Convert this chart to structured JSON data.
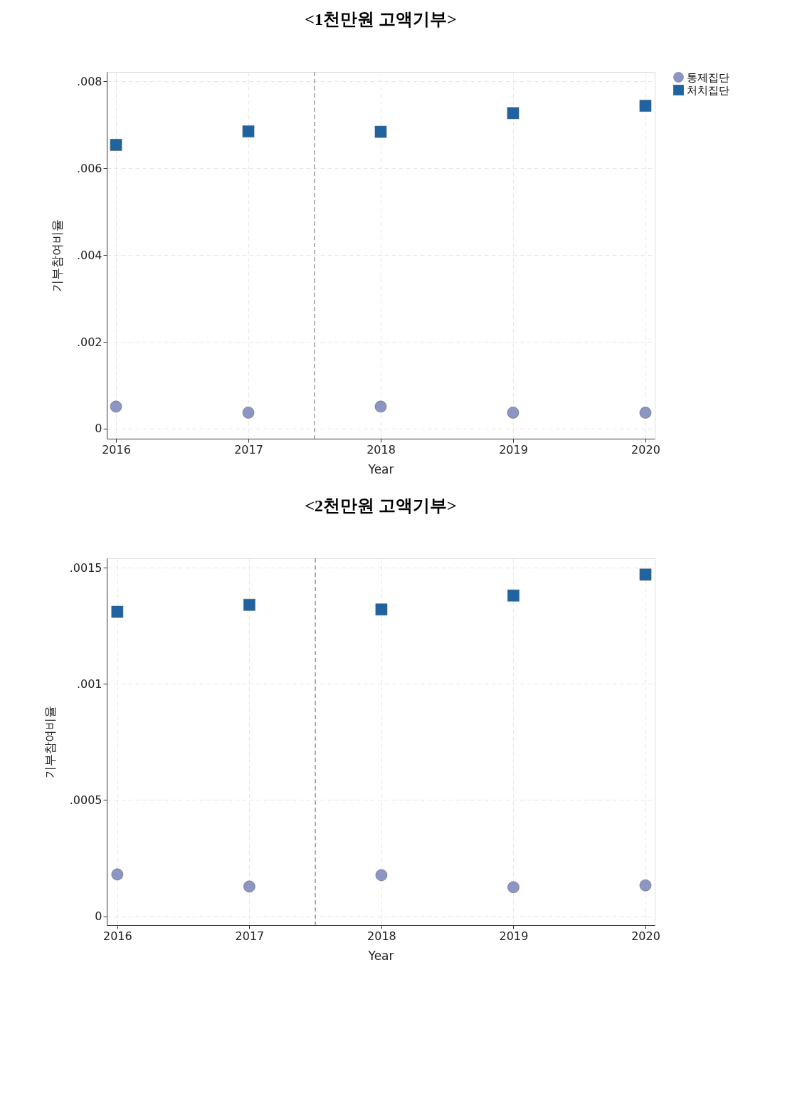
{
  "chart_data": [
    {
      "type": "scatter",
      "title": "<1천만원  고액기부>",
      "xlabel": "Year",
      "ylabel": "기부참여비율",
      "x": [
        2016,
        2017,
        2018,
        2019,
        2020
      ],
      "series": [
        {
          "name": "통제집단",
          "color": "#8c96c4",
          "marker": "circle",
          "values": [
            0.00051,
            0.00037,
            0.00051,
            0.00037,
            0.00037
          ]
        },
        {
          "name": "처치집단",
          "color": "#1f64a0",
          "marker": "square",
          "values": [
            0.00654,
            0.00685,
            0.00684,
            0.00727,
            0.00744
          ]
        }
      ],
      "xlim": [
        2015.93,
        2020.07
      ],
      "xticks": [
        2016,
        2017,
        2018,
        2019,
        2020
      ],
      "ylim": [
        -0.00023,
        0.00822
      ],
      "yticks": [
        0,
        {
          "value": 0.002,
          "label": ".002"
        },
        {
          "value": 0.004,
          "label": ".004"
        },
        {
          "value": 0.006,
          "label": ".006"
        },
        {
          "value": 0.008,
          "label": ".008"
        }
      ],
      "ref_lines": [
        {
          "axis": "x",
          "value": 2017.5,
          "color": "#999999",
          "line_style": "dashed"
        }
      ],
      "grid": true,
      "legend": "right"
    },
    {
      "type": "scatter",
      "title": "<2천만원  고액기부>",
      "xlabel": "Year",
      "ylabel": "기부참여비율",
      "x": [
        2016,
        2017,
        2018,
        2019,
        2020
      ],
      "series": [
        {
          "name": "통제집단",
          "color": "#8c96c4",
          "marker": "circle",
          "values": [
            0.00018,
            0.000128,
            0.000177,
            0.000125,
            0.000133
          ]
        },
        {
          "name": "처치집단",
          "color": "#1f64a0",
          "marker": "square",
          "values": [
            0.00131,
            0.00134,
            0.00132,
            0.00138,
            0.00147
          ]
        }
      ],
      "xlim": [
        2015.92,
        2020.07
      ],
      "xticks": [
        2016,
        2017,
        2018,
        2019,
        2020
      ],
      "ylim": [
        -3.8e-05,
        0.00154
      ],
      "yticks": [
        0,
        {
          "value": 0.0005,
          "label": ".0005"
        },
        {
          "value": 0.001,
          "label": ".001"
        },
        {
          "value": 0.0015,
          "label": ".0015"
        }
      ],
      "ref_lines": [
        {
          "axis": "x",
          "value": 2017.5,
          "color": "#999999",
          "line_style": "dashed"
        }
      ],
      "grid": true,
      "legend": "right"
    }
  ]
}
